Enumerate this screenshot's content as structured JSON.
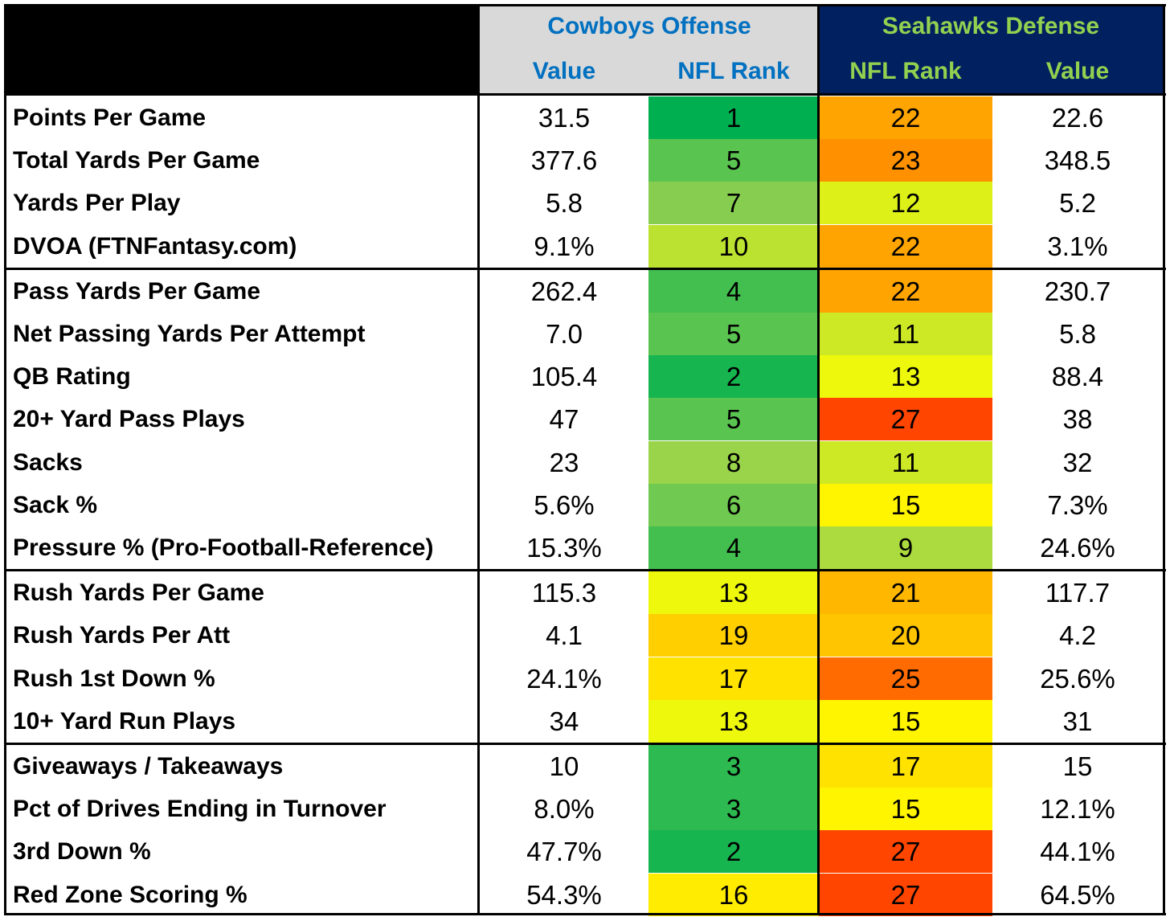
{
  "headers": {
    "offense_title": "Cowboys Offense",
    "defense_title": "Seahawks Defense",
    "off_value": "Value",
    "off_rank": "NFL Rank",
    "def_rank": "NFL Rank",
    "def_value": "Value"
  },
  "colors": {
    "offense_title": "#0070c0",
    "defense_title": "#92d050",
    "defense_header_bg": "#002060",
    "offense_header_bg": "#d9d9d9",
    "rank_scale": [
      "#00b050",
      "#92d050",
      "#ffff00",
      "#ffc000",
      "#ff4500"
    ]
  },
  "chart_data": {
    "type": "table",
    "columns": [
      "Cowboys Offense Value",
      "Cowboys Offense NFL Rank",
      "Seahawks Defense NFL Rank",
      "Seahawks Defense Value"
    ],
    "groups": [
      {
        "rows": [
          {
            "stat": "Points Per Game",
            "off_value": "31.5",
            "off_rank": 1,
            "def_rank": 22,
            "def_value": "22.6"
          },
          {
            "stat": "Total Yards Per Game",
            "off_value": "377.6",
            "off_rank": 5,
            "def_rank": 23,
            "def_value": "348.5"
          },
          {
            "stat": "Yards Per Play",
            "off_value": "5.8",
            "off_rank": 7,
            "def_rank": 12,
            "def_value": "5.2"
          },
          {
            "stat": "DVOA (FTNFantasy.com)",
            "off_value": "9.1%",
            "off_rank": 10,
            "def_rank": 22,
            "def_value": "3.1%"
          }
        ]
      },
      {
        "rows": [
          {
            "stat": "Pass Yards Per Game",
            "off_value": "262.4",
            "off_rank": 4,
            "def_rank": 22,
            "def_value": "230.7"
          },
          {
            "stat": "Net Passing Yards Per Attempt",
            "off_value": "7.0",
            "off_rank": 5,
            "def_rank": 11,
            "def_value": "5.8"
          },
          {
            "stat": "QB Rating",
            "off_value": "105.4",
            "off_rank": 2,
            "def_rank": 13,
            "def_value": "88.4"
          },
          {
            "stat": "20+ Yard Pass Plays",
            "off_value": "47",
            "off_rank": 5,
            "def_rank": 27,
            "def_value": "38"
          },
          {
            "stat": "Sacks",
            "off_value": "23",
            "off_rank": 8,
            "def_rank": 11,
            "def_value": "32"
          },
          {
            "stat": "Sack %",
            "off_value": "5.6%",
            "off_rank": 6,
            "def_rank": 15,
            "def_value": "7.3%"
          },
          {
            "stat": "Pressure % (Pro-Football-Reference)",
            "off_value": "15.3%",
            "off_rank": 4,
            "def_rank": 9,
            "def_value": "24.6%"
          }
        ]
      },
      {
        "rows": [
          {
            "stat": "Rush Yards Per Game",
            "off_value": "115.3",
            "off_rank": 13,
            "def_rank": 21,
            "def_value": "117.7"
          },
          {
            "stat": "Rush Yards Per Att",
            "off_value": "4.1",
            "off_rank": 19,
            "def_rank": 20,
            "def_value": "4.2"
          },
          {
            "stat": "Rush 1st Down %",
            "off_value": "24.1%",
            "off_rank": 17,
            "def_rank": 25,
            "def_value": "25.6%"
          },
          {
            "stat": "10+ Yard Run Plays",
            "off_value": "34",
            "off_rank": 13,
            "def_rank": 15,
            "def_value": "31"
          }
        ]
      },
      {
        "rows": [
          {
            "stat": "Giveaways / Takeaways",
            "off_value": "10",
            "off_rank": 3,
            "def_rank": 17,
            "def_value": "15"
          },
          {
            "stat": "Pct of Drives Ending in Turnover",
            "off_value": "8.0%",
            "off_rank": 3,
            "def_rank": 15,
            "def_value": "12.1%"
          },
          {
            "stat": "3rd Down %",
            "off_value": "47.7%",
            "off_rank": 2,
            "def_rank": 27,
            "def_value": "44.1%"
          },
          {
            "stat": "Red Zone Scoring %",
            "off_value": "54.3%",
            "off_rank": 16,
            "def_rank": 27,
            "def_value": "64.5%"
          }
        ]
      }
    ]
  }
}
